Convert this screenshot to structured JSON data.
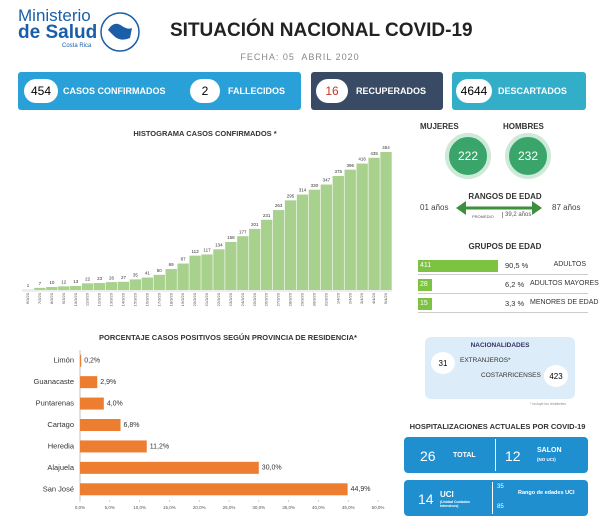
{
  "header": {
    "org_line1": "Ministerio",
    "org_line2": "de Salud",
    "org_line3": "Costa Rica",
    "title": "SITUACIÓN NACIONAL COVID-19",
    "date": "FECHA: 05  ABRIL 2020"
  },
  "summary": [
    {
      "value": 454,
      "label": "CASOS CONFIRMADOS"
    },
    {
      "value": 2,
      "label": "FALLECIDOS"
    },
    {
      "value": 16,
      "label": "RECUPERADOS"
    },
    {
      "value": 4644,
      "label": "DESCARTADOS"
    }
  ],
  "sex": [
    {
      "label": "MUJERES",
      "value": 222
    },
    {
      "label": "HOMBRES",
      "value": 232
    }
  ],
  "age_range": {
    "title": "RANGOS DE EDAD",
    "min": "01 años",
    "max": "87 años",
    "avg_label": "PROMEDIO",
    "avg": "39,2 años"
  },
  "age_groups": {
    "title": "GRUPOS DE EDAD",
    "rows": [
      {
        "count": 411,
        "percent": "90,5 %",
        "label": "ADULTOS"
      },
      {
        "count": 28,
        "percent": "6,2 %",
        "label": "ADULTOS MAYORES"
      },
      {
        "count": 15,
        "percent": "3,3 %",
        "label": "MENORES DE EDAD"
      }
    ]
  },
  "nationalities": {
    "title": "NACIONALIDADES",
    "rows": [
      {
        "label": "EXTRANJEROS*",
        "value": 31
      },
      {
        "label": "COSTARRICENSES",
        "value": 423
      }
    ],
    "note": "* Incluye los residentes"
  },
  "hospital": {
    "title": "HOSPITALIZACIONES ACTUALES POR COVID-19",
    "total": 26,
    "total_label": "TOTAL",
    "salon": 12,
    "salon_label": "SALON",
    "salon_sub": "(NO UCI)",
    "uci": 14,
    "uci_label": "UCI",
    "uci_sub": "(Unidad Cuidados Intensivos)",
    "uci_age_title": "Rango de edades UCI",
    "uci_age_min": 35,
    "uci_age_max": 85
  },
  "chart_data": [
    {
      "type": "bar",
      "title": "HISTOGRAMA CASOS CONFIRMADOS *",
      "color": "#a9d18e",
      "categories": [
        "6/3/20",
        "7/3/20",
        "8/3/20",
        "9/3/20",
        "10/3/20",
        "11/3/20",
        "12/3/20",
        "13/3/20",
        "14/3/20",
        "15/3/20",
        "16/3/20",
        "17/3/20",
        "18/3/20",
        "19/3/20",
        "20/3/20",
        "21/3/20",
        "22/3/20",
        "23/3/20",
        "24/3/20",
        "25/3/20",
        "26/3/20",
        "27/3/20",
        "28/3/20",
        "29/3/20",
        "30/3/20",
        "31/3/20",
        "1/4/20",
        "2/4/20",
        "3/4/20",
        "4/4/20",
        "5/4/20"
      ],
      "values": [
        1,
        7,
        10,
        12,
        13,
        22,
        23,
        26,
        27,
        35,
        41,
        50,
        69,
        87,
        113,
        117,
        134,
        158,
        177,
        201,
        231,
        263,
        295,
        314,
        330,
        347,
        375,
        396,
        416,
        435,
        454
      ]
    },
    {
      "type": "hbar",
      "title": "PORCENTAJE CASOS POSITIVOS SEGÚN PROVINCIA DE RESIDENCIA*",
      "color": "#ed7d31",
      "categories": [
        "Limón",
        "Guanacaste",
        "Puntarenas",
        "Cartago",
        "Heredia",
        "Alajuela",
        "San José"
      ],
      "values": [
        0.2,
        2.9,
        4.0,
        6.8,
        11.2,
        30.0,
        44.9
      ],
      "value_labels": [
        "0,2%",
        "2,9%",
        "4,0%",
        "6,8%",
        "11,2%",
        "30,0%",
        "44,9%"
      ],
      "xlim": [
        0,
        50
      ],
      "xticks": [
        {
          "value": 0,
          "label": "0,0%"
        },
        {
          "value": 5,
          "label": "5,0%"
        },
        {
          "value": 10,
          "label": "10,0%"
        },
        {
          "value": 15,
          "label": "15,0%"
        },
        {
          "value": 20,
          "label": "20,0%"
        },
        {
          "value": 25,
          "label": "25,0%"
        },
        {
          "value": 30,
          "label": "30,0%"
        },
        {
          "value": 35,
          "label": "35,0%"
        },
        {
          "value": 40,
          "label": "40,0%"
        },
        {
          "value": 45,
          "label": "45,0%"
        },
        {
          "value": 50,
          "label": "50,0%"
        }
      ]
    }
  ]
}
